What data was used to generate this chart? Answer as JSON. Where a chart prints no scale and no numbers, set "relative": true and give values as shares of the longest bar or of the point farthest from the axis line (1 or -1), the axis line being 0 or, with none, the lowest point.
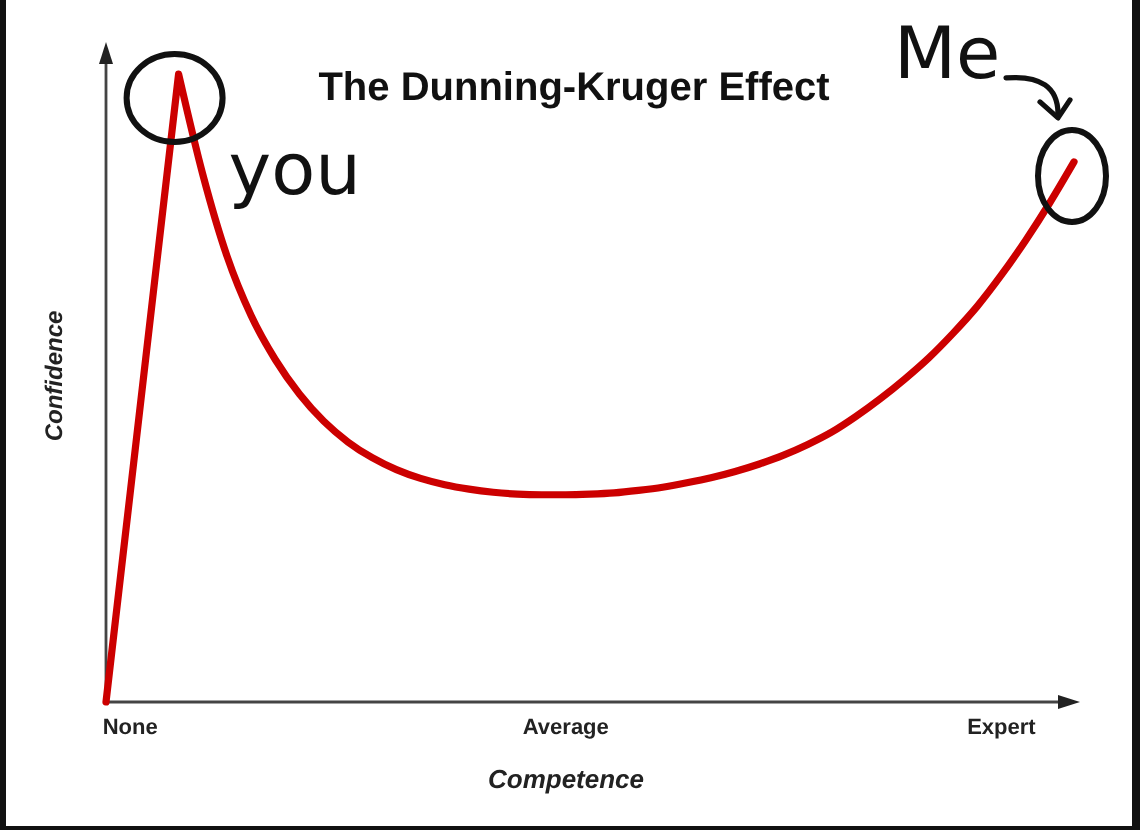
{
  "chart_data": {
    "type": "line",
    "title": "The Dunning-Kruger Effect",
    "xlabel": "Competence",
    "ylabel": "Confidence",
    "relative": true,
    "categories": [
      null,
      "None",
      null,
      null,
      null,
      null,
      null,
      null,
      null,
      null,
      null,
      null,
      null,
      null,
      null,
      null,
      null,
      null,
      null,
      "Average",
      null,
      null,
      null,
      null,
      null,
      null,
      null,
      null,
      null,
      null,
      null,
      null,
      null,
      null,
      null,
      null,
      null,
      "Expert",
      null,
      null,
      null
    ],
    "values": [
      0,
      0.333,
      0.667,
      1,
      0.84,
      0.71,
      0.615,
      0.545,
      0.49,
      0.447,
      0.414,
      0.389,
      0.37,
      0.356,
      0.346,
      0.339,
      0.334,
      0.331,
      0.33,
      0.33,
      0.331,
      0.333,
      0.337,
      0.342,
      0.349,
      0.357,
      0.367,
      0.379,
      0.393,
      0.41,
      0.43,
      0.455,
      0.483,
      0.514,
      0.548,
      0.587,
      0.63,
      0.68,
      0.735,
      0.795,
      0.86
    ],
    "color": "#cc0000",
    "annotations": [
      "you",
      "Me"
    ]
  }
}
